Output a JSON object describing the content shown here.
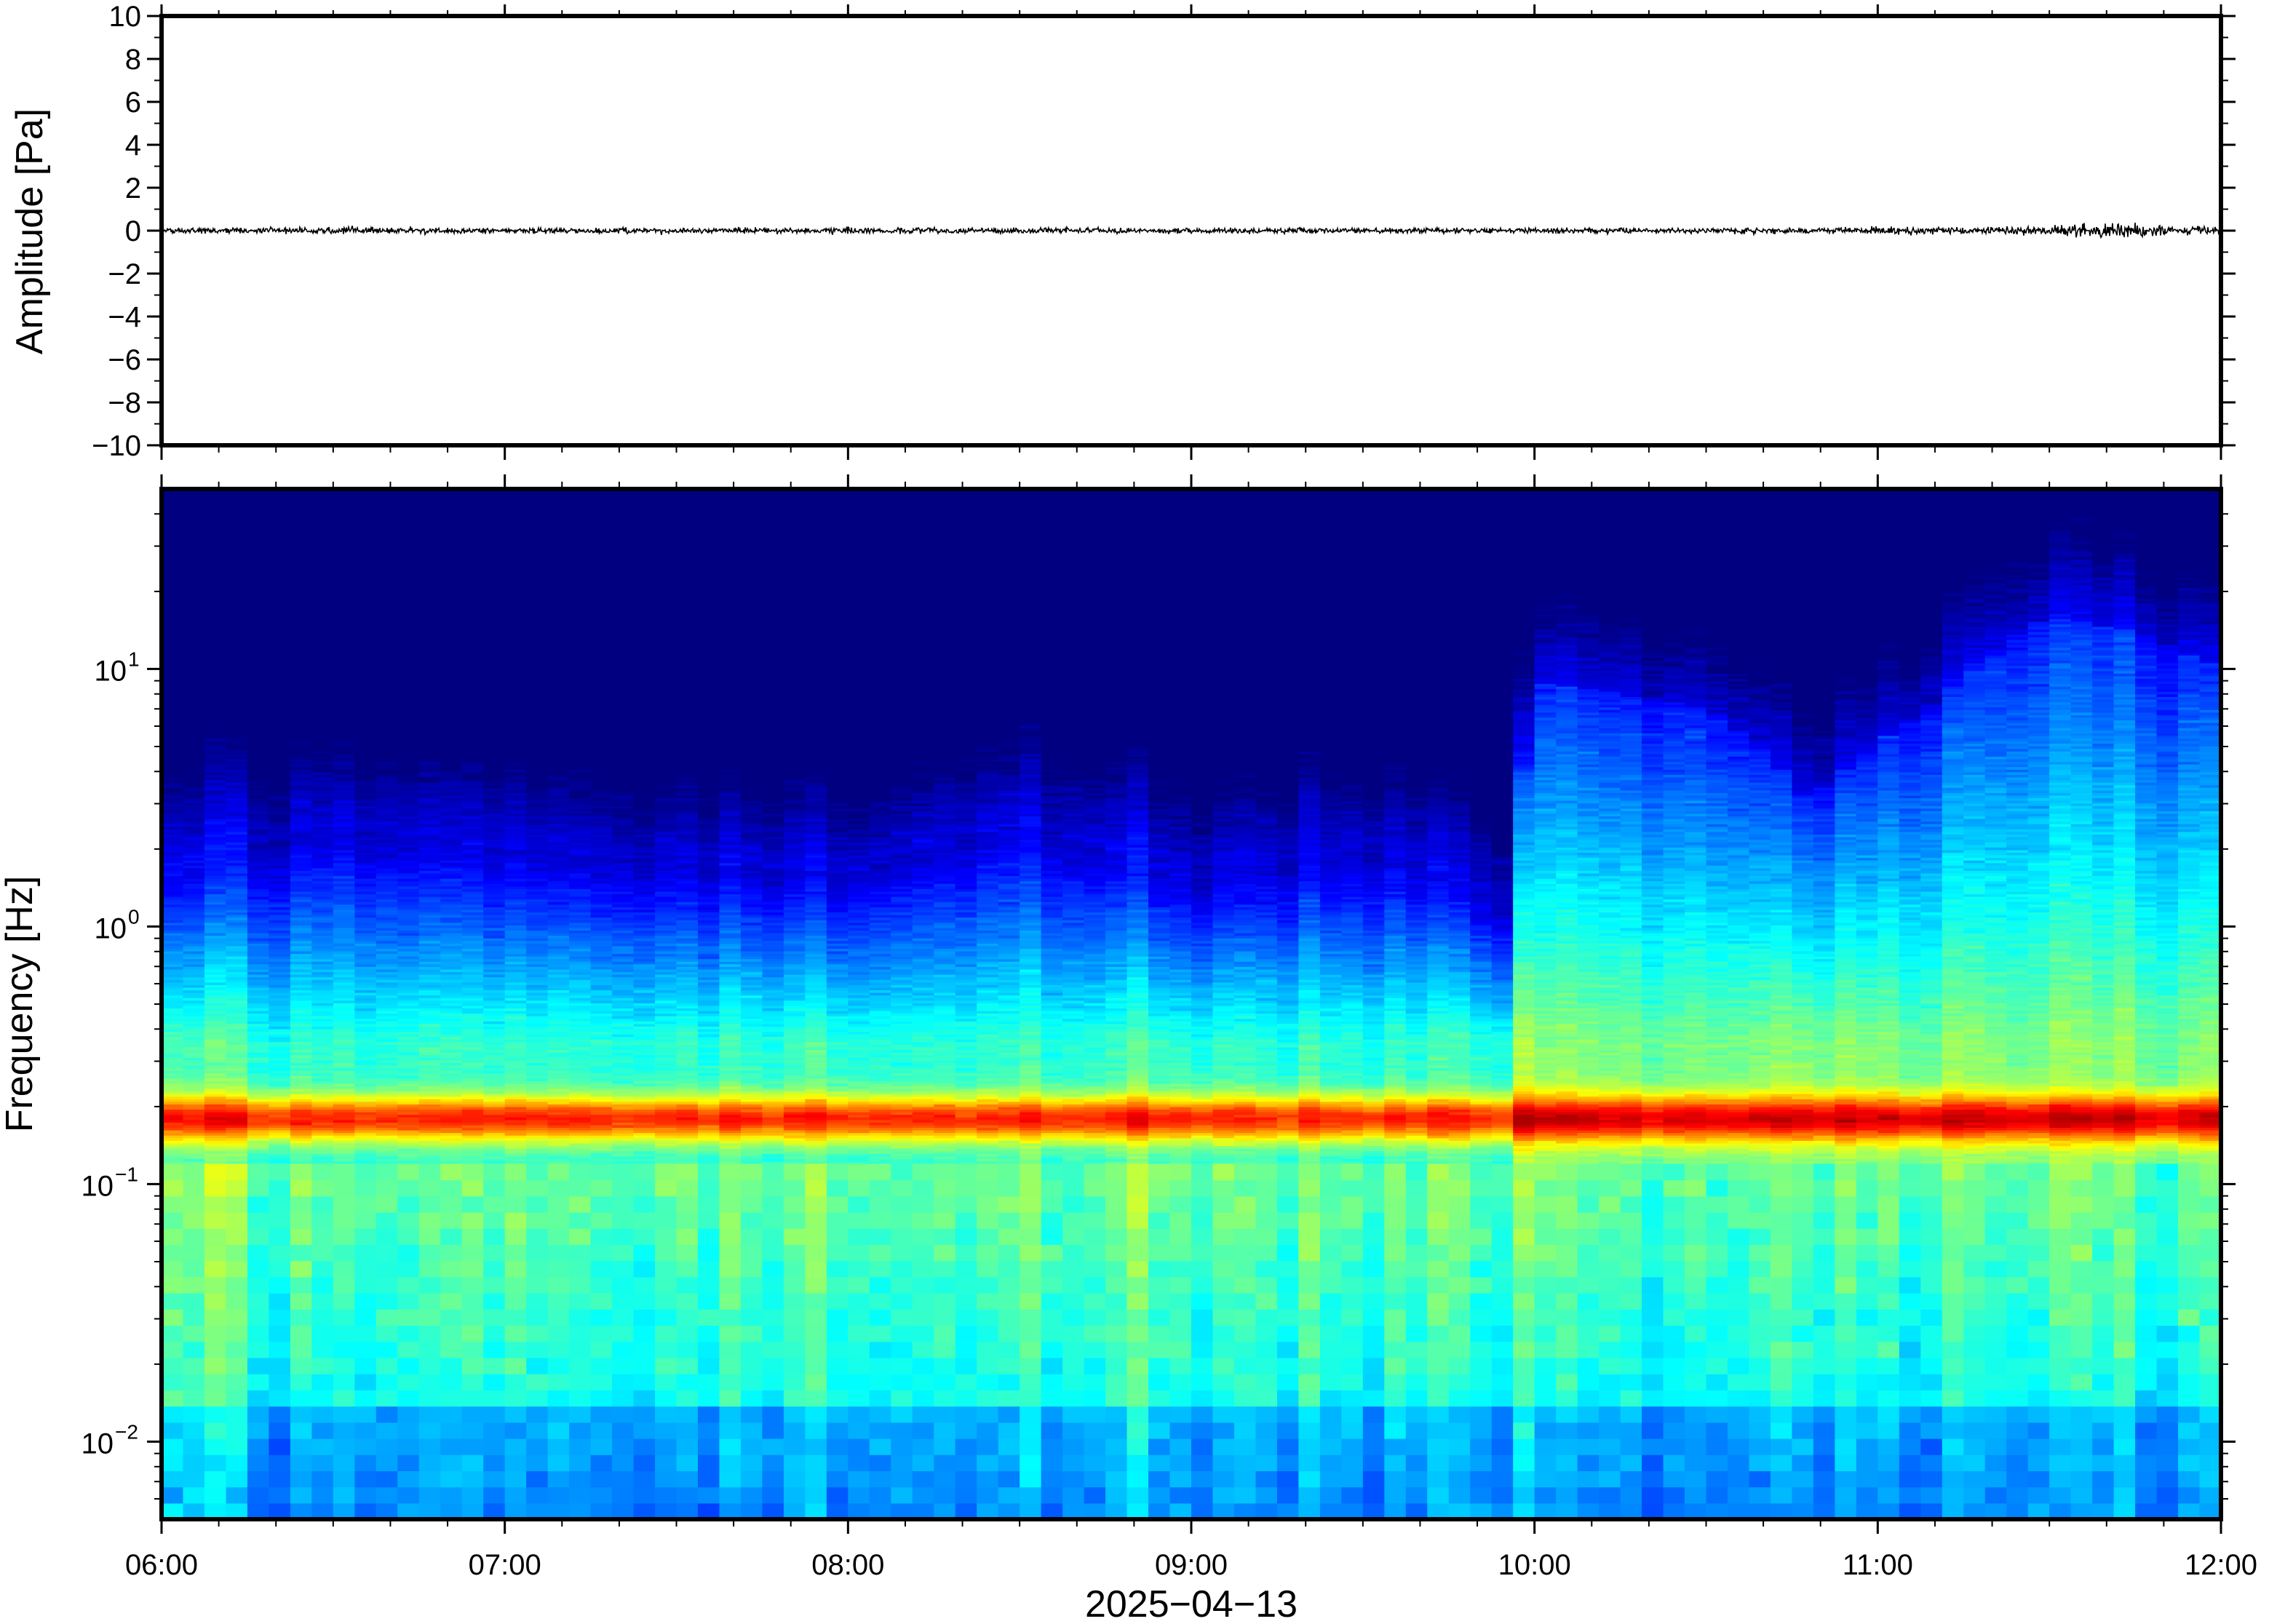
{
  "chart_data": [
    {
      "type": "line",
      "panel": "waveform",
      "ylabel": "Amplitude [Pa]",
      "ylim": [
        -10,
        10
      ],
      "yticks": [
        -10,
        -8,
        -6,
        -4,
        -2,
        0,
        2,
        4,
        6,
        8,
        10
      ],
      "ytick_labels": [
        "−10",
        "−8",
        "−6",
        "−4",
        "−2",
        "0",
        "2",
        "4",
        "6",
        "8",
        "10"
      ],
      "xlim": [
        "06:00",
        "12:00"
      ],
      "series": [
        {
          "color": "#000000",
          "description_baseline": 0,
          "envelope_x_hours": [
            6.0,
            6.5,
            7.0,
            7.5,
            8.0,
            8.5,
            9.0,
            9.5,
            10.0,
            10.5,
            11.0,
            11.25,
            11.5,
            11.65,
            11.8,
            12.0
          ],
          "envelope_amplitude": [
            0.15,
            0.18,
            0.15,
            0.15,
            0.18,
            0.15,
            0.15,
            0.15,
            0.15,
            0.15,
            0.18,
            0.2,
            0.25,
            0.5,
            0.3,
            0.2
          ]
        }
      ],
      "grid": false
    },
    {
      "type": "heatmap",
      "panel": "spectrogram",
      "ylabel": "Frequency [Hz]",
      "yscale": "log",
      "ylim": [
        0.005,
        50
      ],
      "yticks": [
        0.01,
        0.1,
        1,
        10
      ],
      "ytick_labels": [
        {
          "base": "10",
          "exp": "−2"
        },
        {
          "base": "10",
          "exp": "−1"
        },
        {
          "base": "10",
          "exp": "0"
        },
        {
          "base": "10",
          "exp": "1"
        }
      ],
      "xlim": [
        "06:00",
        "12:00"
      ],
      "xticks": [
        "06:00",
        "07:00",
        "08:00",
        "09:00",
        "10:00",
        "11:00",
        "12:00"
      ],
      "xlabel": "2025−04−13",
      "colormap": "jet",
      "colors": {
        "low": "#00007f",
        "high": "#ff4000"
      },
      "band_peak_hz": 0.18,
      "upper_edge_hz_by_hour": {
        "x_hours": [
          6.0,
          6.5,
          7.0,
          7.5,
          8.0,
          8.5,
          9.0,
          9.5,
          9.95,
          10.0,
          10.5,
          10.8,
          11.0,
          11.2,
          11.5,
          11.75,
          12.0
        ],
        "edge_hz": [
          1.5,
          2.5,
          2.0,
          1.8,
          1.6,
          2.5,
          1.5,
          2.0,
          1.2,
          9.0,
          7.0,
          3.0,
          5.0,
          8.0,
          16.0,
          14.0,
          10.0
        ]
      },
      "grid": false
    }
  ]
}
